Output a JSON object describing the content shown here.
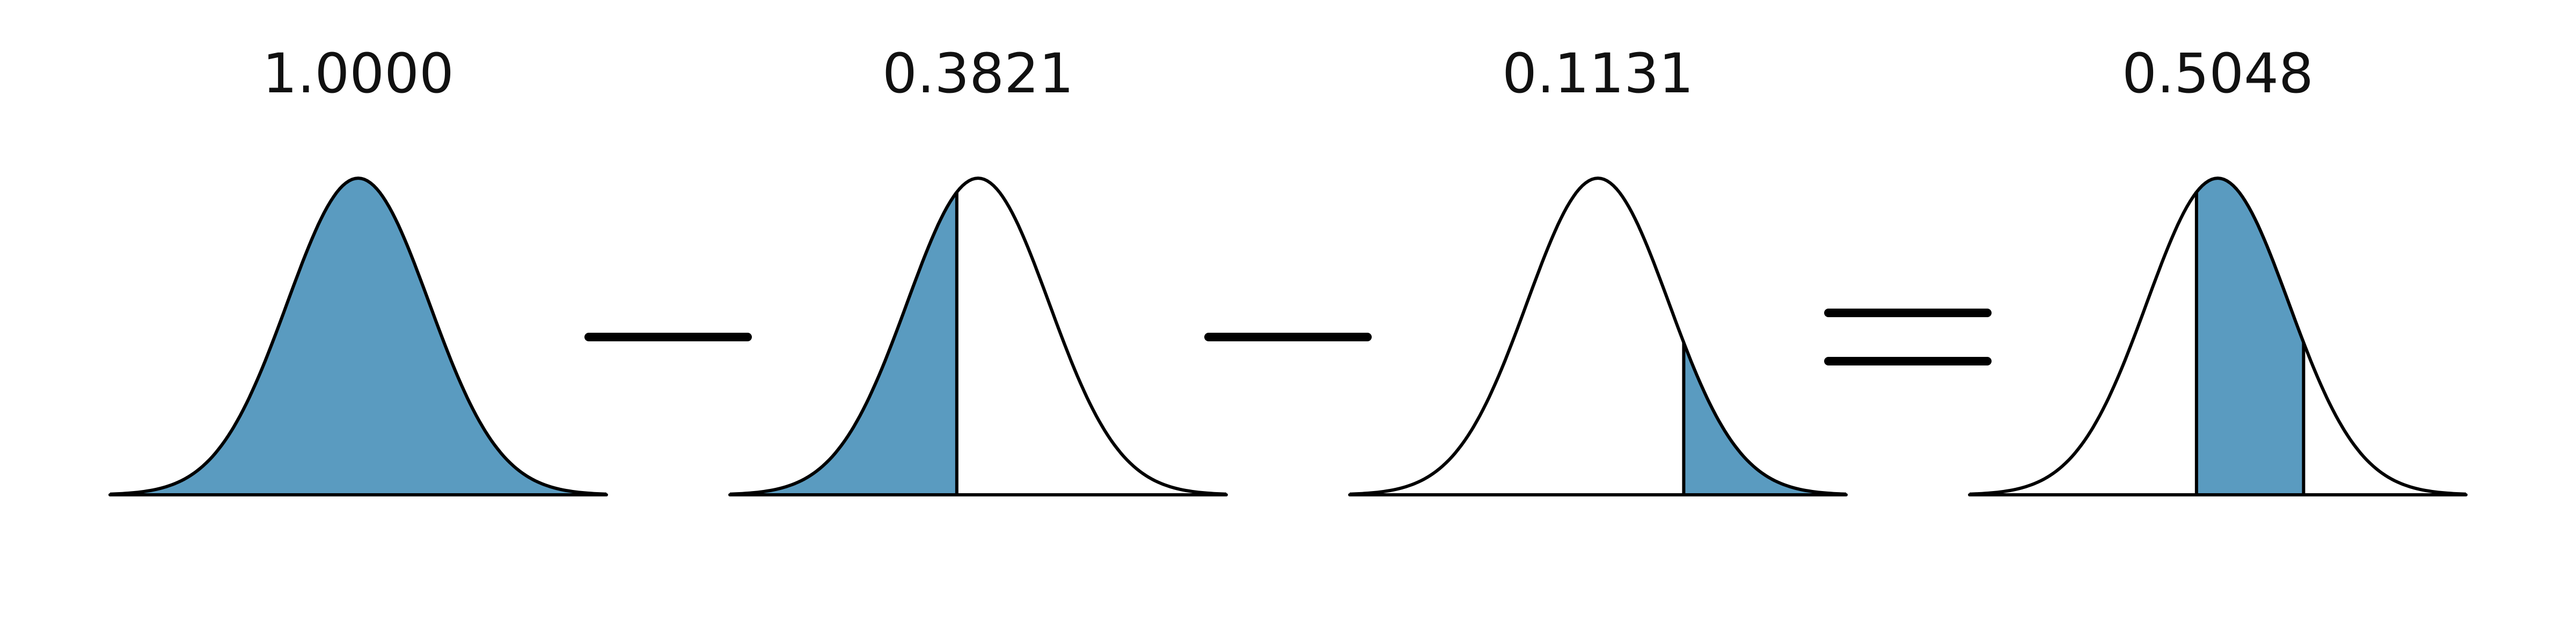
{
  "title": "",
  "shade_color": "#5a9bc0",
  "outline_color": "#000000",
  "panels": [
    {
      "label": "1.0000",
      "value": 1.0,
      "shaded_from_z": null,
      "shaded_to_z": null
    },
    {
      "label": "0.3821",
      "value": 0.3821,
      "shaded_from_z": null,
      "shaded_to_z": -0.3
    },
    {
      "label": "0.1131",
      "value": 0.1131,
      "shaded_from_z": 1.21,
      "shaded_to_z": null
    },
    {
      "label": "0.5048",
      "value": 0.5048,
      "shaded_from_z": -0.3,
      "shaded_to_z": 1.21
    }
  ],
  "operators": [
    "minus",
    "minus",
    "equals"
  ]
}
